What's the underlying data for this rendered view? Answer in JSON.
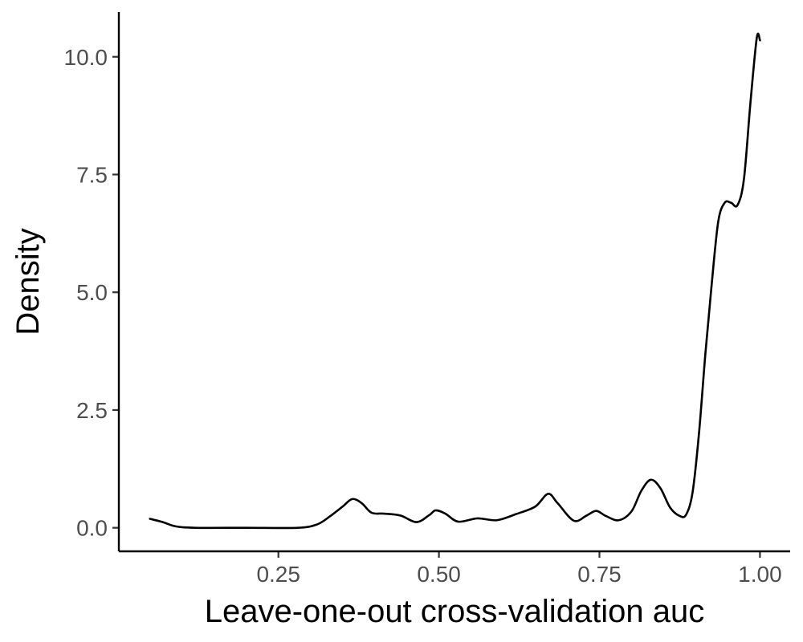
{
  "chart_data": {
    "type": "line",
    "title": "",
    "xlabel": "Leave-one-out cross-validation auc",
    "ylabel": "Density",
    "xlim": [
      0.0015,
      1.047
    ],
    "ylim": [
      -0.5,
      10.95
    ],
    "x_ticks": [
      {
        "value": 0.25,
        "label": "0.25"
      },
      {
        "value": 0.5,
        "label": "0.50"
      },
      {
        "value": 0.75,
        "label": "0.75"
      },
      {
        "value": 1.0,
        "label": "1.00"
      }
    ],
    "y_ticks": [
      {
        "value": 0.0,
        "label": "0.0"
      },
      {
        "value": 2.5,
        "label": "2.5"
      },
      {
        "value": 5.0,
        "label": "5.0"
      },
      {
        "value": 7.5,
        "label": "7.5"
      },
      {
        "value": 10.0,
        "label": "10.0"
      }
    ],
    "grid": false,
    "series": [
      {
        "color": "#000000",
        "points": [
          [
            0.05,
            0.19
          ],
          [
            0.07,
            0.12
          ],
          [
            0.09,
            0.03
          ],
          [
            0.12,
            0.0
          ],
          [
            0.2,
            0.0
          ],
          [
            0.28,
            0.0
          ],
          [
            0.31,
            0.07
          ],
          [
            0.33,
            0.24
          ],
          [
            0.35,
            0.45
          ],
          [
            0.365,
            0.61
          ],
          [
            0.38,
            0.52
          ],
          [
            0.395,
            0.32
          ],
          [
            0.415,
            0.3
          ],
          [
            0.44,
            0.26
          ],
          [
            0.465,
            0.12
          ],
          [
            0.485,
            0.27
          ],
          [
            0.495,
            0.37
          ],
          [
            0.51,
            0.3
          ],
          [
            0.53,
            0.13
          ],
          [
            0.56,
            0.2
          ],
          [
            0.59,
            0.16
          ],
          [
            0.62,
            0.29
          ],
          [
            0.65,
            0.45
          ],
          [
            0.67,
            0.72
          ],
          [
            0.685,
            0.52
          ],
          [
            0.71,
            0.15
          ],
          [
            0.73,
            0.26
          ],
          [
            0.745,
            0.36
          ],
          [
            0.76,
            0.25
          ],
          [
            0.78,
            0.16
          ],
          [
            0.8,
            0.35
          ],
          [
            0.815,
            0.78
          ],
          [
            0.83,
            1.02
          ],
          [
            0.845,
            0.84
          ],
          [
            0.86,
            0.43
          ],
          [
            0.875,
            0.25
          ],
          [
            0.885,
            0.28
          ],
          [
            0.895,
            0.75
          ],
          [
            0.905,
            2.0
          ],
          [
            0.915,
            3.7
          ],
          [
            0.925,
            5.2
          ],
          [
            0.935,
            6.5
          ],
          [
            0.945,
            6.9
          ],
          [
            0.955,
            6.9
          ],
          [
            0.965,
            6.85
          ],
          [
            0.975,
            7.4
          ],
          [
            0.985,
            9.0
          ],
          [
            0.995,
            10.4
          ],
          [
            1.0,
            10.35
          ]
        ]
      }
    ]
  }
}
